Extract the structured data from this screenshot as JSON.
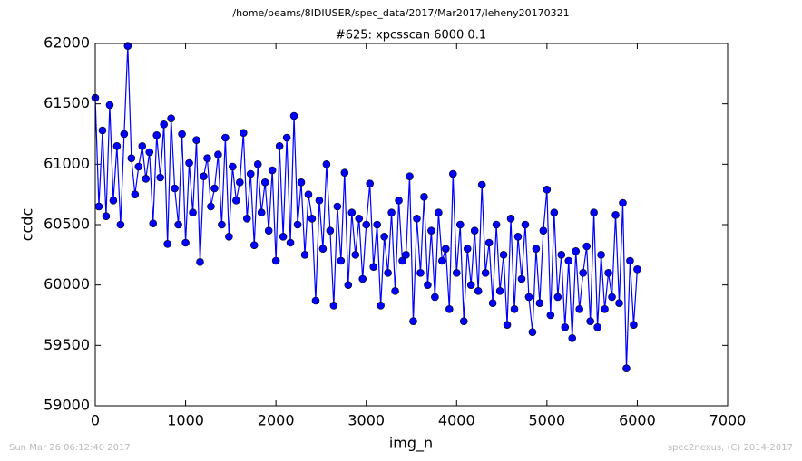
{
  "chart_data": {
    "type": "line",
    "suptitle": "/home/beams/8IDIUSER/spec_data/2017/Mar2017/leheny20170321",
    "title": "#625: xpcsscan 6000 0.1",
    "xlabel": "img_n",
    "ylabel": "ccdc",
    "footer_left": "Sun Mar 26 06:12:40 2017",
    "footer_right": "spec2nexus, (C) 2014-2017",
    "xlim": [
      0,
      7000
    ],
    "xticks": [
      0,
      1000,
      2000,
      3000,
      4000,
      5000,
      6000,
      7000
    ],
    "ylim": [
      59000,
      62000
    ],
    "yticks": [
      59000,
      59500,
      60000,
      60500,
      61000,
      61500,
      62000
    ],
    "x": [
      0,
      40,
      80,
      120,
      160,
      200,
      240,
      280,
      320,
      360,
      400,
      440,
      480,
      520,
      560,
      600,
      640,
      680,
      720,
      760,
      800,
      840,
      880,
      920,
      960,
      1000,
      1040,
      1080,
      1120,
      1160,
      1200,
      1240,
      1280,
      1320,
      1360,
      1400,
      1440,
      1480,
      1520,
      1560,
      1600,
      1640,
      1680,
      1720,
      1760,
      1800,
      1840,
      1880,
      1920,
      1960,
      2000,
      2040,
      2080,
      2120,
      2160,
      2200,
      2240,
      2280,
      2320,
      2360,
      2400,
      2440,
      2480,
      2520,
      2560,
      2600,
      2640,
      2680,
      2720,
      2760,
      2800,
      2840,
      2880,
      2920,
      2960,
      3000,
      3040,
      3080,
      3120,
      3160,
      3200,
      3240,
      3280,
      3320,
      3360,
      3400,
      3440,
      3480,
      3520,
      3560,
      3600,
      3640,
      3680,
      3720,
      3760,
      3800,
      3840,
      3880,
      3920,
      3960,
      4000,
      4040,
      4080,
      4120,
      4160,
      4200,
      4240,
      4280,
      4320,
      4360,
      4400,
      4440,
      4480,
      4520,
      4560,
      4600,
      4640,
      4680,
      4720,
      4760,
      4800,
      4840,
      4880,
      4920,
      4960,
      5000,
      5040,
      5080,
      5120,
      5160,
      5200,
      5240,
      5280,
      5320,
      5360,
      5400,
      5440,
      5480,
      5520,
      5560,
      5600,
      5640,
      5680,
      5720,
      5760,
      5800,
      5840,
      5880,
      5920,
      5960,
      6000
    ],
    "series": [
      {
        "name": "ccdc",
        "color": "#0000ff",
        "values": [
          61550,
          60650,
          61280,
          60570,
          61490,
          60700,
          61150,
          60500,
          61250,
          61980,
          61050,
          60750,
          60980,
          61150,
          60880,
          61100,
          60510,
          61240,
          60890,
          61330,
          60340,
          61380,
          60800,
          60500,
          61250,
          60350,
          61010,
          60600,
          61200,
          60190,
          60900,
          61050,
          60650,
          60800,
          61080,
          60500,
          61220,
          60400,
          60980,
          60700,
          60850,
          61260,
          60550,
          60920,
          60330,
          61000,
          60600,
          60850,
          60450,
          60950,
          60200,
          61150,
          60400,
          61220,
          60350,
          61400,
          60500,
          60850,
          60250,
          60750,
          60550,
          59870,
          60700,
          60300,
          61000,
          60450,
          59830,
          60650,
          60200,
          60930,
          60000,
          60600,
          60250,
          60550,
          60050,
          60500,
          60840,
          60150,
          60500,
          59830,
          60400,
          60100,
          60600,
          59950,
          60700,
          60200,
          60250,
          60900,
          59700,
          60550,
          60100,
          60730,
          60000,
          60450,
          59900,
          60600,
          60200,
          60300,
          59800,
          60920,
          60100,
          60500,
          59700,
          60300,
          60000,
          60450,
          59950,
          60830,
          60100,
          60350,
          59850,
          60500,
          59950,
          60250,
          59670,
          60550,
          59800,
          60400,
          60050,
          60500,
          59900,
          59610,
          60300,
          59850,
          60450,
          60790,
          59750,
          60600,
          59900,
          60250,
          59650,
          60200,
          59560,
          60280,
          59800,
          60100,
          60320,
          59700,
          60600,
          59650,
          60250,
          59800,
          60100,
          59900,
          60580,
          59850,
          60680,
          59310,
          60200,
          59670,
          60130
        ]
      }
    ]
  }
}
